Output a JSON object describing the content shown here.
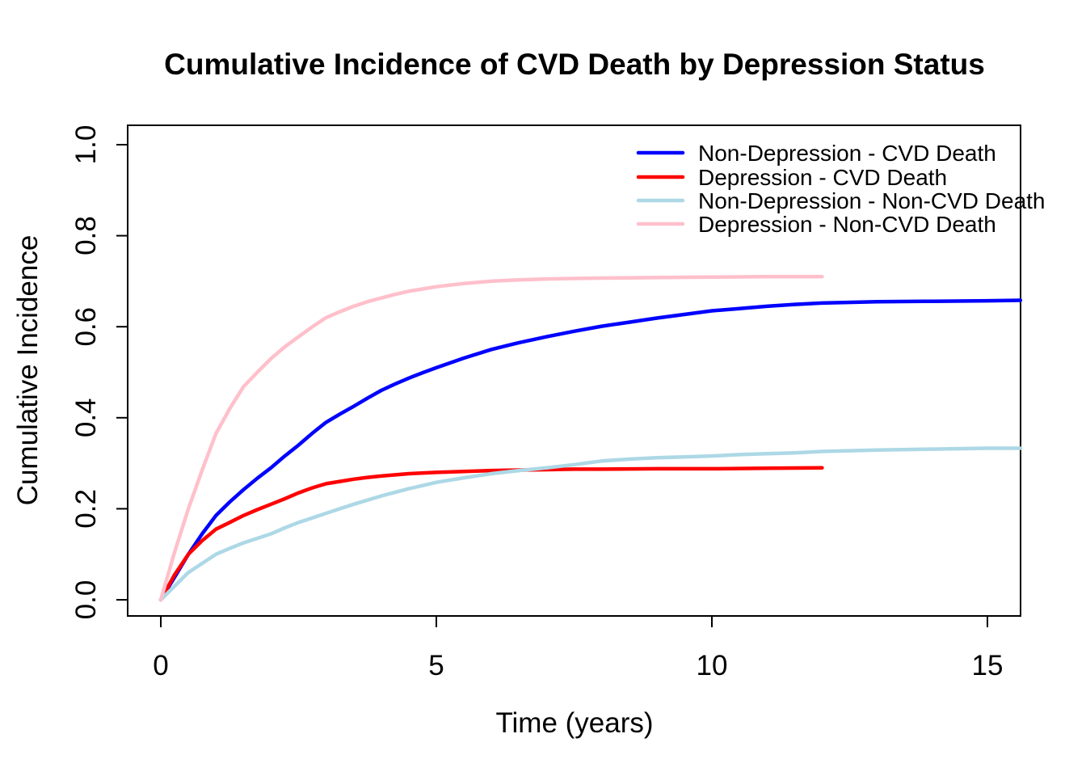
{
  "chart_data": {
    "type": "line",
    "title": "Cumulative Incidence of CVD Death by Depression Status",
    "xlabel": "Time (years)",
    "ylabel": "Cumulative Incidence",
    "xlim": [
      0,
      15.6
    ],
    "ylim": [
      0,
      1
    ],
    "grid": false,
    "legend_position": "top-right",
    "frame_color": "#000000",
    "x_ticks": [
      {
        "value": 0,
        "label": "0"
      },
      {
        "value": 5,
        "label": "5"
      },
      {
        "value": 10,
        "label": "10"
      },
      {
        "value": 15,
        "label": "15"
      }
    ],
    "y_ticks": [
      {
        "value": 0.0,
        "label": "0.0"
      },
      {
        "value": 0.2,
        "label": "0.2"
      },
      {
        "value": 0.4,
        "label": "0.4"
      },
      {
        "value": 0.6,
        "label": "0.6"
      },
      {
        "value": 0.8,
        "label": "0.8"
      },
      {
        "value": 1.0,
        "label": "1.0"
      }
    ],
    "series": [
      {
        "label": "Non-Depression - CVD Death",
        "color": "#0000FF",
        "points": [
          [
            0,
            0
          ],
          [
            0.25,
            0.05
          ],
          [
            0.5,
            0.1
          ],
          [
            0.75,
            0.145
          ],
          [
            1,
            0.185
          ],
          [
            1.25,
            0.215
          ],
          [
            1.5,
            0.242
          ],
          [
            1.75,
            0.267
          ],
          [
            2,
            0.29
          ],
          [
            2.25,
            0.316
          ],
          [
            2.5,
            0.34
          ],
          [
            2.75,
            0.366
          ],
          [
            3,
            0.39
          ],
          [
            3.25,
            0.408
          ],
          [
            3.5,
            0.425
          ],
          [
            3.75,
            0.443
          ],
          [
            4,
            0.46
          ],
          [
            4.25,
            0.474
          ],
          [
            4.5,
            0.487
          ],
          [
            4.75,
            0.499
          ],
          [
            5,
            0.51
          ],
          [
            5.5,
            0.531
          ],
          [
            6,
            0.55
          ],
          [
            6.5,
            0.565
          ],
          [
            7,
            0.578
          ],
          [
            7.5,
            0.59
          ],
          [
            8,
            0.601
          ],
          [
            8.5,
            0.61
          ],
          [
            9,
            0.619
          ],
          [
            9.5,
            0.627
          ],
          [
            10,
            0.635
          ],
          [
            10.5,
            0.64
          ],
          [
            11,
            0.645
          ],
          [
            11.5,
            0.649
          ],
          [
            12,
            0.652
          ],
          [
            13,
            0.655
          ],
          [
            14,
            0.656
          ],
          [
            15,
            0.657
          ],
          [
            15.6,
            0.658
          ]
        ]
      },
      {
        "label": "Depression - CVD Death",
        "color": "#FF0000",
        "points": [
          [
            0,
            0
          ],
          [
            0.25,
            0.055
          ],
          [
            0.5,
            0.1
          ],
          [
            0.75,
            0.13
          ],
          [
            1,
            0.155
          ],
          [
            1.25,
            0.17
          ],
          [
            1.5,
            0.185
          ],
          [
            1.75,
            0.198
          ],
          [
            2,
            0.21
          ],
          [
            2.25,
            0.222
          ],
          [
            2.5,
            0.235
          ],
          [
            2.75,
            0.246
          ],
          [
            3,
            0.255
          ],
          [
            3.25,
            0.26
          ],
          [
            3.5,
            0.265
          ],
          [
            3.75,
            0.269
          ],
          [
            4,
            0.272
          ],
          [
            4.5,
            0.277
          ],
          [
            5,
            0.28
          ],
          [
            5.5,
            0.282
          ],
          [
            6,
            0.284
          ],
          [
            6.5,
            0.285
          ],
          [
            7,
            0.286
          ],
          [
            7.5,
            0.287
          ],
          [
            8,
            0.287
          ],
          [
            9,
            0.288
          ],
          [
            10,
            0.288
          ],
          [
            11,
            0.289
          ],
          [
            12,
            0.29
          ]
        ]
      },
      {
        "label": "Non-Depression - Non-CVD Death",
        "color": "#ADD8E6",
        "points": [
          [
            0,
            0
          ],
          [
            0.25,
            0.03
          ],
          [
            0.5,
            0.06
          ],
          [
            0.75,
            0.08
          ],
          [
            1,
            0.1
          ],
          [
            1.25,
            0.113
          ],
          [
            1.5,
            0.125
          ],
          [
            1.75,
            0.135
          ],
          [
            2,
            0.145
          ],
          [
            2.25,
            0.158
          ],
          [
            2.5,
            0.17
          ],
          [
            2.75,
            0.18
          ],
          [
            3,
            0.19
          ],
          [
            3.25,
            0.2
          ],
          [
            3.5,
            0.21
          ],
          [
            3.75,
            0.219
          ],
          [
            4,
            0.228
          ],
          [
            4.25,
            0.236
          ],
          [
            4.5,
            0.244
          ],
          [
            4.75,
            0.251
          ],
          [
            5,
            0.258
          ],
          [
            5.5,
            0.268
          ],
          [
            6,
            0.277
          ],
          [
            6.5,
            0.284
          ],
          [
            7,
            0.29
          ],
          [
            7.5,
            0.297
          ],
          [
            8,
            0.305
          ],
          [
            8.5,
            0.309
          ],
          [
            9,
            0.312
          ],
          [
            9.5,
            0.314
          ],
          [
            10,
            0.316
          ],
          [
            10.5,
            0.319
          ],
          [
            11,
            0.321
          ],
          [
            11.5,
            0.323
          ],
          [
            12,
            0.326
          ],
          [
            13,
            0.329
          ],
          [
            14,
            0.331
          ],
          [
            15,
            0.333
          ],
          [
            15.6,
            0.333
          ]
        ]
      },
      {
        "label": "Depression - Non-CVD Death",
        "color": "#FFC0CB",
        "points": [
          [
            0,
            0
          ],
          [
            0.25,
            0.105
          ],
          [
            0.5,
            0.2
          ],
          [
            0.75,
            0.285
          ],
          [
            1,
            0.365
          ],
          [
            1.25,
            0.42
          ],
          [
            1.5,
            0.468
          ],
          [
            1.75,
            0.5
          ],
          [
            2,
            0.53
          ],
          [
            2.25,
            0.556
          ],
          [
            2.5,
            0.578
          ],
          [
            2.75,
            0.6
          ],
          [
            3,
            0.62
          ],
          [
            3.25,
            0.633
          ],
          [
            3.5,
            0.645
          ],
          [
            3.75,
            0.655
          ],
          [
            4,
            0.663
          ],
          [
            4.25,
            0.671
          ],
          [
            4.5,
            0.678
          ],
          [
            4.75,
            0.683
          ],
          [
            5,
            0.688
          ],
          [
            5.5,
            0.695
          ],
          [
            6,
            0.7
          ],
          [
            6.5,
            0.703
          ],
          [
            7,
            0.705
          ],
          [
            7.5,
            0.706
          ],
          [
            8,
            0.707
          ],
          [
            9,
            0.708
          ],
          [
            10,
            0.709
          ],
          [
            11,
            0.71
          ],
          [
            12,
            0.71
          ]
        ]
      }
    ]
  }
}
